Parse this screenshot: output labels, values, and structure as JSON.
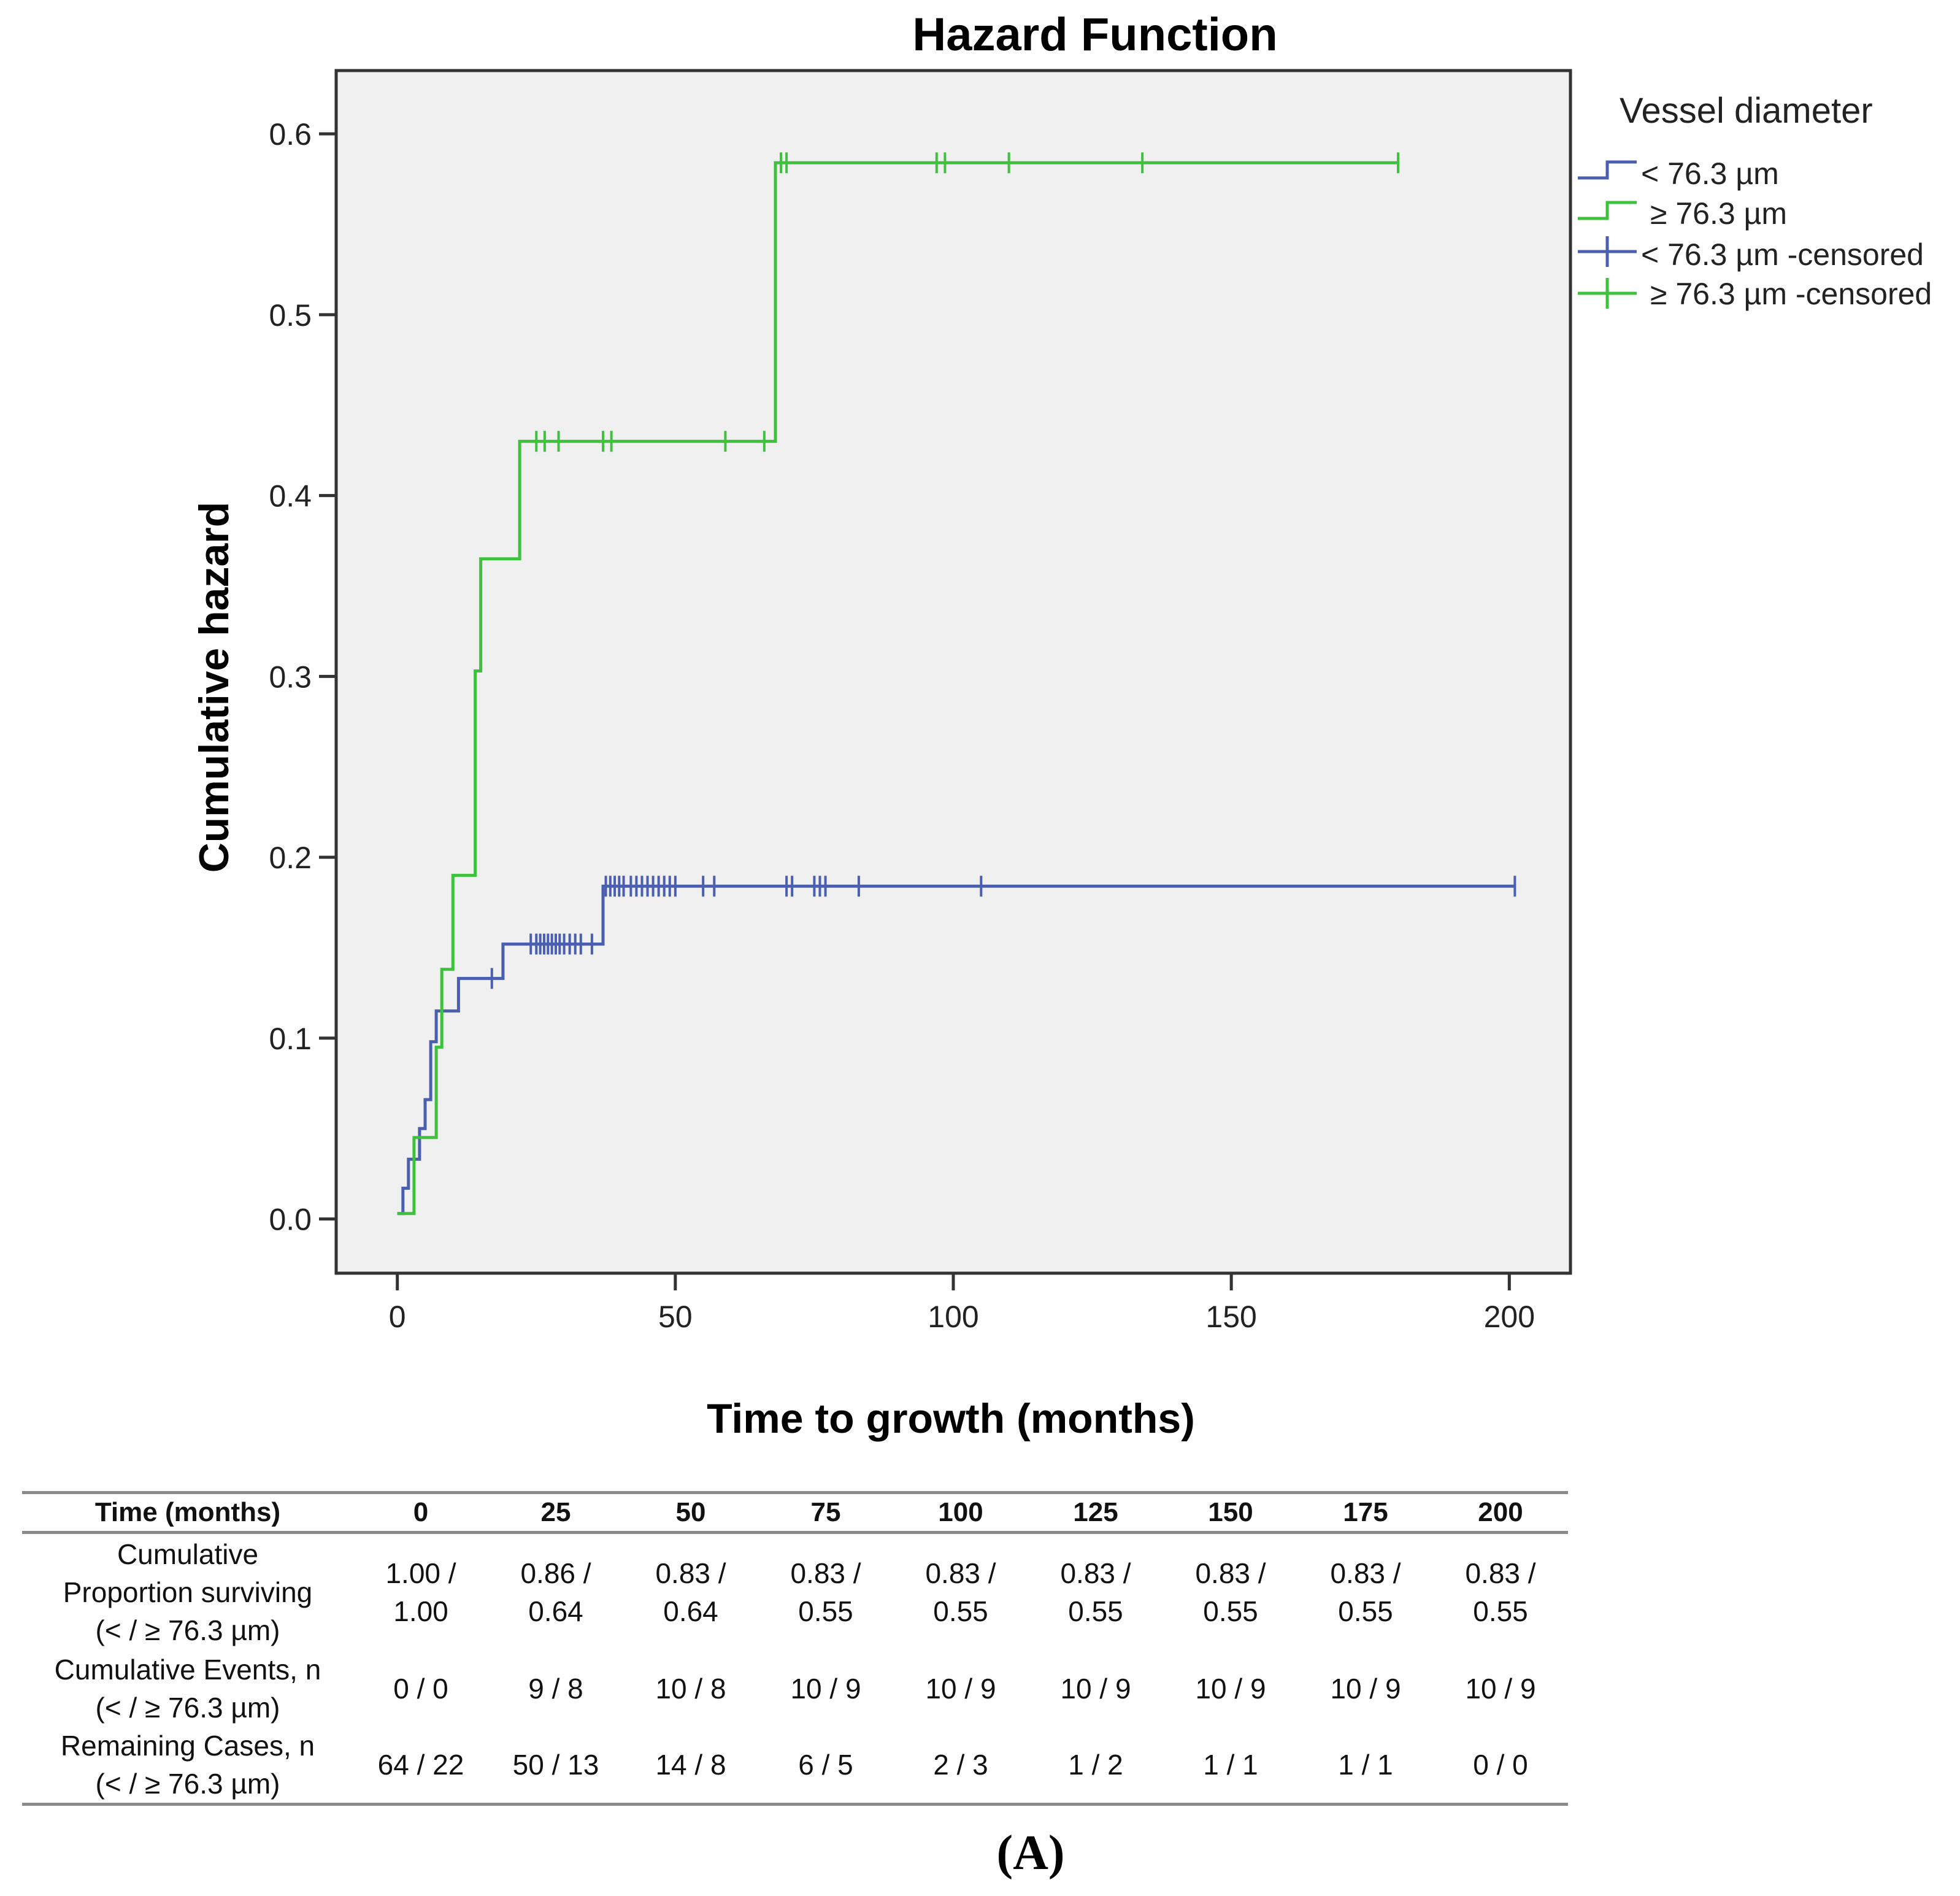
{
  "chart_data": {
    "type": "line",
    "subtype": "step (cumulative hazard)",
    "title": "Hazard Function",
    "xlabel": "Time to growth (months)",
    "ylabel": "Cumulative hazard",
    "xlim": [
      -11,
      211
    ],
    "ylim": [
      -0.03,
      0.635
    ],
    "xticks": [
      0,
      50,
      100,
      150,
      200
    ],
    "xtick_labels": [
      "0",
      "50",
      "100",
      "150",
      "200"
    ],
    "yticks": [
      0.0,
      0.1,
      0.2,
      0.3,
      0.4,
      0.5,
      0.6
    ],
    "ytick_labels": [
      "0.0",
      "0.1",
      "0.2",
      "0.3",
      "0.4",
      "0.5",
      "0.6"
    ],
    "legend": {
      "title": "Vessel diameter",
      "position": "right, outside plot area",
      "entries": [
        "< 76.3 µm",
        "≥ 76.3 µm",
        "< 76.3 µm -censored",
        "≥ 76.3 µm -censored"
      ]
    },
    "series": [
      {
        "name": "< 76.3 µm",
        "color": "#4a5fb0",
        "steps": [
          [
            0,
            0.003
          ],
          [
            1,
            0.017
          ],
          [
            2,
            0.033
          ],
          [
            4,
            0.05
          ],
          [
            5,
            0.066
          ],
          [
            6,
            0.098
          ],
          [
            7,
            0.115
          ],
          [
            11,
            0.133
          ],
          [
            19,
            0.152
          ],
          [
            37,
            0.184
          ],
          [
            201,
            0.184
          ]
        ],
        "censored": [
          [
            17,
            0.133
          ],
          [
            24,
            0.152
          ],
          [
            25,
            0.152
          ],
          [
            25.7,
            0.152
          ],
          [
            26.4,
            0.152
          ],
          [
            27.1,
            0.152
          ],
          [
            27.8,
            0.152
          ],
          [
            28.5,
            0.152
          ],
          [
            29.2,
            0.152
          ],
          [
            30,
            0.152
          ],
          [
            31,
            0.152
          ],
          [
            32,
            0.152
          ],
          [
            33,
            0.152
          ],
          [
            35,
            0.152
          ],
          [
            37.5,
            0.184
          ],
          [
            38.3,
            0.184
          ],
          [
            39.1,
            0.184
          ],
          [
            39.9,
            0.184
          ],
          [
            40.7,
            0.184
          ],
          [
            42,
            0.184
          ],
          [
            43,
            0.184
          ],
          [
            44,
            0.184
          ],
          [
            45,
            0.184
          ],
          [
            46,
            0.184
          ],
          [
            47,
            0.184
          ],
          [
            48,
            0.184
          ],
          [
            49,
            0.184
          ],
          [
            50,
            0.184
          ],
          [
            55,
            0.184
          ],
          [
            57,
            0.184
          ],
          [
            70,
            0.184
          ],
          [
            71,
            0.184
          ],
          [
            75,
            0.184
          ],
          [
            76,
            0.184
          ],
          [
            77,
            0.184
          ],
          [
            83,
            0.184
          ],
          [
            105,
            0.184
          ],
          [
            201,
            0.184
          ]
        ]
      },
      {
        "name": "≥ 76.3 µm",
        "color": "#3ec23e",
        "steps": [
          [
            0,
            0.003
          ],
          [
            3,
            0.045
          ],
          [
            7,
            0.095
          ],
          [
            8,
            0.138
          ],
          [
            10,
            0.19
          ],
          [
            14,
            0.303
          ],
          [
            15,
            0.365
          ],
          [
            22,
            0.43
          ],
          [
            68,
            0.584
          ],
          [
            180,
            0.584
          ]
        ],
        "censored": [
          [
            25,
            0.43
          ],
          [
            26.5,
            0.43
          ],
          [
            29,
            0.43
          ],
          [
            37,
            0.43
          ],
          [
            38.5,
            0.43
          ],
          [
            59,
            0.43
          ],
          [
            66,
            0.43
          ],
          [
            69,
            0.584
          ],
          [
            70,
            0.584
          ],
          [
            97,
            0.584
          ],
          [
            98.5,
            0.584
          ],
          [
            110,
            0.584
          ],
          [
            134,
            0.584
          ],
          [
            180,
            0.584
          ]
        ]
      }
    ]
  },
  "risk_table": {
    "header_label": "Time (months)",
    "times": [
      "0",
      "25",
      "50",
      "75",
      "100",
      "125",
      "150",
      "175",
      "200"
    ],
    "rows": [
      {
        "label_lines": [
          "Cumulative",
          "Proportion surviving",
          "(< / ≥ 76.3 µm)"
        ],
        "cells": [
          [
            "1.00 /",
            "1.00"
          ],
          [
            "0.86 /",
            "0.64"
          ],
          [
            "0.83 /",
            "0.64"
          ],
          [
            "0.83 /",
            "0.55"
          ],
          [
            "0.83 /",
            "0.55"
          ],
          [
            "0.83 /",
            "0.55"
          ],
          [
            "0.83 /",
            "0.55"
          ],
          [
            "0.83 /",
            "0.55"
          ],
          [
            "0.83 /",
            "0.55"
          ]
        ]
      },
      {
        "label_lines": [
          "Cumulative Events, n",
          "(< / ≥ 76.3 µm)"
        ],
        "cells": [
          [
            "0 / 0"
          ],
          [
            "9 / 8"
          ],
          [
            "10 / 8"
          ],
          [
            "10 / 9"
          ],
          [
            "10 / 9"
          ],
          [
            "10 / 9"
          ],
          [
            "10 / 9"
          ],
          [
            "10 / 9"
          ],
          [
            "10 / 9"
          ]
        ]
      },
      {
        "label_lines": [
          "Remaining Cases, n",
          "(< / ≥ 76.3 µm)"
        ],
        "cells": [
          [
            "64 / 22"
          ],
          [
            "50 / 13"
          ],
          [
            "14 / 8"
          ],
          [
            "6 / 5"
          ],
          [
            "2 / 3"
          ],
          [
            "1 / 2"
          ],
          [
            "1 / 1"
          ],
          [
            "1 / 1"
          ],
          [
            "0 / 0"
          ]
        ]
      }
    ]
  },
  "panel_label": "(A)"
}
